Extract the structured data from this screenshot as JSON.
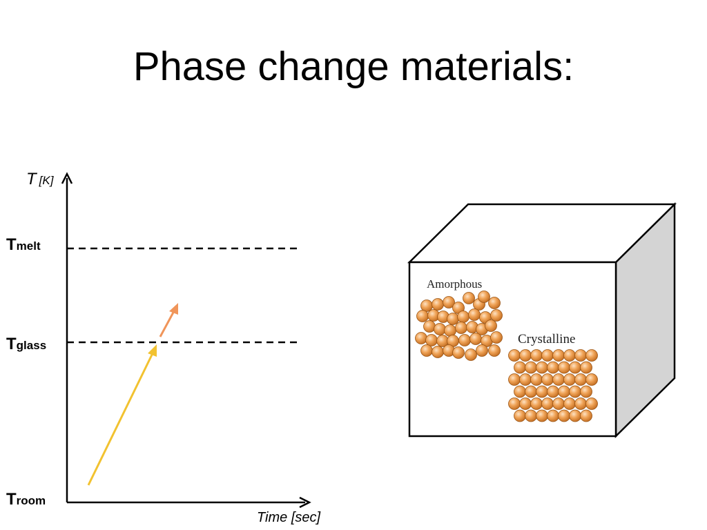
{
  "title": "Phase change materials:",
  "graph": {
    "y_axis_label": {
      "symbol": "T",
      "unit": "[K]"
    },
    "x_axis_label": "Time [sec]",
    "levels": [
      {
        "main": "T",
        "sub": "melt"
      },
      {
        "main": "T",
        "sub": "glass"
      },
      {
        "main": "T",
        "sub": "room"
      }
    ],
    "arrow_colors": {
      "heating": "#f2c230",
      "continuation": "#f0955a"
    }
  },
  "cube": {
    "amorphous_label": "Amorphous",
    "crystalline_label": "Crystalline",
    "atom_color": "#ec9a4a",
    "side_face_color": "#d4d4d4"
  }
}
